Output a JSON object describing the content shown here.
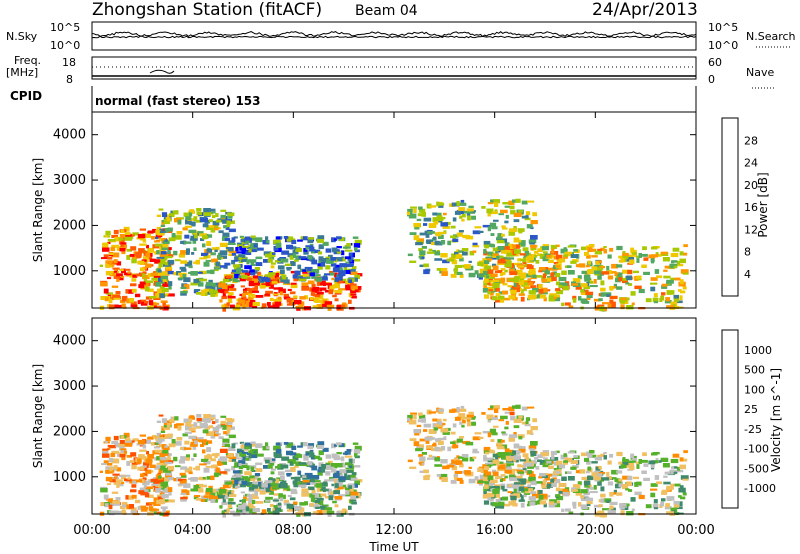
{
  "header": {
    "title": "Zhongshan Station (fitACF)",
    "beam": "Beam 04",
    "date": "24/Apr/2013"
  },
  "noise_panel": {
    "left_label": "N.Sky",
    "right_label": "N.Search",
    "left_ticks": [
      "10^5",
      "10^0"
    ],
    "right_ticks": [
      "10^5",
      "10^0"
    ]
  },
  "freq_panel": {
    "left_label_line1": "Freq.",
    "left_label_line2": "[MHz]",
    "left_ticks": [
      "18",
      "8"
    ],
    "right_label": "Nave",
    "right_ticks": [
      "60",
      "0"
    ]
  },
  "cpid_panel": {
    "label": "CPID",
    "text": "normal (fast stereo) 153"
  },
  "power_panel": {
    "ylabel": "Slant Range [km]",
    "yticks": [
      "4000",
      "3000",
      "2000",
      "1000"
    ],
    "colorbar_label": "Power [dB]",
    "colorbar_ticks": [
      "28",
      "24",
      "20",
      "16",
      "12",
      "8",
      "4"
    ],
    "colorbar_colors": [
      "#ff0000",
      "#ff5a00",
      "#ff9600",
      "#f0c800",
      "#a8c800",
      "#52a860",
      "#3a7a96",
      "#2a56c8",
      "#0000ff"
    ]
  },
  "velocity_panel": {
    "ylabel": "Slant Range [km]",
    "yticks": [
      "4000",
      "3000",
      "2000",
      "1000"
    ],
    "colorbar_label": "Velocity [m s^-1]",
    "colorbar_ticks": [
      "1000",
      "500",
      "100",
      "25",
      "-25",
      "-100",
      "-500",
      "-1000"
    ],
    "colorbar_colors": [
      "#1a3fb8",
      "#2f6fa0",
      "#3f8a6a",
      "#55b02a",
      "#c0c0c0",
      "#f0c060",
      "#ff8c00",
      "#ff5000",
      "#ff0000"
    ]
  },
  "xaxis": {
    "label": "Time UT",
    "ticks": [
      "00:00",
      "04:00",
      "08:00",
      "12:00",
      "16:00",
      "20:00",
      "00:00"
    ]
  },
  "chart_data": {
    "type": "heatmap",
    "x_range_hours": [
      0,
      24
    ],
    "y_range_km": [
      180,
      4500
    ],
    "power_color_scale_db": [
      0,
      32
    ],
    "velocity_color_scale_ms": [
      -1000,
      1000
    ],
    "noise_scale": "log",
    "noise_ylim": [
      1,
      100000
    ],
    "freq_ylim_mhz": [
      8,
      18
    ],
    "nave_ylim": [
      0,
      60
    ],
    "scatter_regions": [
      {
        "t0": 0.3,
        "t1": 3.0,
        "r0": 200,
        "r1": 2000,
        "power_db": 24,
        "velocity": -300
      },
      {
        "t0": 2.5,
        "t1": 5.5,
        "r0": 500,
        "r1": 2400,
        "power_db": 14,
        "velocity": -150
      },
      {
        "t0": 5.0,
        "t1": 10.5,
        "r0": 200,
        "r1": 1000,
        "power_db": 26,
        "velocity": 80
      },
      {
        "t0": 5.5,
        "t1": 10.5,
        "r0": 800,
        "r1": 1800,
        "power_db": 10,
        "velocity": 300
      },
      {
        "t0": 12.5,
        "t1": 17.5,
        "r0": 900,
        "r1": 2600,
        "power_db": 14,
        "velocity": -120
      },
      {
        "t0": 15.5,
        "t1": 18.5,
        "r0": 400,
        "r1": 1600,
        "power_db": 20,
        "velocity": 50
      },
      {
        "t0": 18.5,
        "t1": 23.5,
        "r0": 200,
        "r1": 1600,
        "power_db": 18,
        "velocity": 80
      }
    ]
  }
}
